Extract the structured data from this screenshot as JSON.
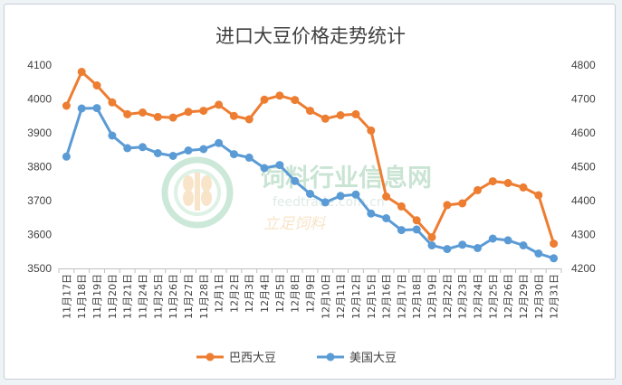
{
  "chart_data": {
    "type": "line",
    "title": "进口大豆价格走势统计",
    "categories": [
      "11月17日",
      "11月18日",
      "11月19日",
      "11月20日",
      "11月21日",
      "11月24日",
      "11月25日",
      "11月26日",
      "11月27日",
      "11月28日",
      "12月1日",
      "12月2日",
      "12月3日",
      "12月4日",
      "12月5日",
      "12月8日",
      "12月9日",
      "12月10日",
      "12月11日",
      "12月12日",
      "12月15日",
      "12月16日",
      "12月17日",
      "12月18日",
      "12月19日",
      "12月22日",
      "12月23日",
      "12月24日",
      "12月25日",
      "12月26日",
      "12月29日",
      "12月30日",
      "12月31日"
    ],
    "y_left": {
      "min": 3500,
      "max": 4100,
      "step": 100,
      "ticks": [
        "3500",
        "3600",
        "3700",
        "3800",
        "3900",
        "4000",
        "4100"
      ]
    },
    "y_right": {
      "min": 4200,
      "max": 4800,
      "step": 100,
      "ticks": [
        "4200",
        "4300",
        "4400",
        "4500",
        "4600",
        "4700",
        "4800"
      ]
    },
    "series": [
      {
        "name": "巴西大豆",
        "axis": "left",
        "color": "#ed7d31",
        "values": [
          3980,
          4080,
          4040,
          3990,
          3955,
          3960,
          3947,
          3945,
          3962,
          3965,
          3983,
          3950,
          3940,
          3998,
          4010,
          3997,
          3965,
          3942,
          3952,
          3955,
          3907,
          3712,
          3683,
          3642,
          3592,
          3687,
          3692,
          3731,
          3757,
          3752,
          3739,
          3716,
          3573
        ]
      },
      {
        "name": "美国大豆",
        "axis": "right",
        "color": "#5b9bd5",
        "values": [
          4530,
          4672,
          4673,
          4592,
          4555,
          4558,
          4540,
          4532,
          4548,
          4552,
          4570,
          4537,
          4527,
          4496,
          4505,
          4458,
          4420,
          4395,
          4414,
          4418,
          4362,
          4348,
          4313,
          4315,
          4268,
          4257,
          4270,
          4260,
          4288,
          4283,
          4268,
          4244,
          4230
        ]
      }
    ],
    "grid": "none",
    "legend_position": "bottom"
  },
  "watermark": {
    "name": "饲料行业信息网",
    "url": "feedtrade.com.cn",
    "slogan": "立足饲料"
  }
}
